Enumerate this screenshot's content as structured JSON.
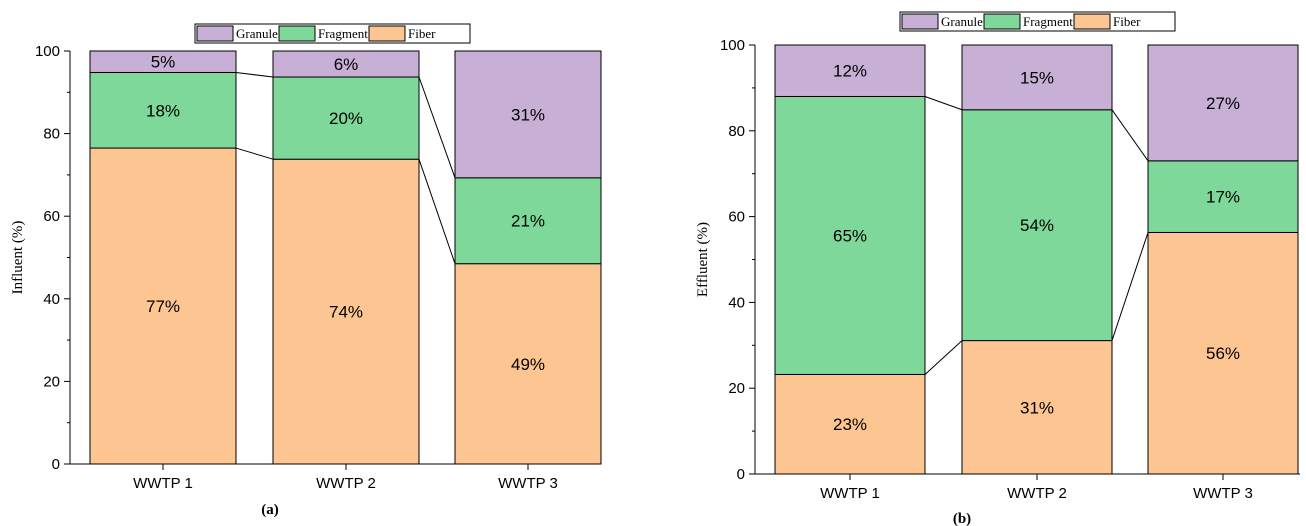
{
  "chart_data": [
    {
      "type": "bar",
      "stacked": true,
      "normalized": true,
      "panel_label": "(a)",
      "categories": [
        "WWTP 1",
        "WWTP 2",
        "WWTP 3"
      ],
      "ylabel": "Influent (%)",
      "xlabel": "",
      "ylim": [
        0,
        100
      ],
      "yticks": [
        0,
        20,
        40,
        60,
        80,
        100
      ],
      "legend": {
        "placement": "top",
        "entries": [
          "Granule",
          "Fragment",
          "Fiber"
        ]
      },
      "series": [
        {
          "name": "Fiber",
          "color": "#FDC591",
          "values": [
            76.5,
            73.8,
            48.5
          ],
          "labels": [
            "77%",
            "74%",
            "49%"
          ]
        },
        {
          "name": "Fragment",
          "color": "#7ED89A",
          "values": [
            18.3,
            19.9,
            20.8
          ],
          "labels": [
            "18%",
            "20%",
            "21%"
          ]
        },
        {
          "name": "Granule",
          "color": "#C7AFD6",
          "values": [
            5.2,
            6.3,
            30.7
          ],
          "labels": [
            "5%",
            "6%",
            "31%"
          ]
        }
      ],
      "connector_lines": true,
      "grid": false
    },
    {
      "type": "bar",
      "stacked": true,
      "normalized": true,
      "panel_label": "(b)",
      "categories": [
        "WWTP 1",
        "WWTP 2",
        "WWTP 3"
      ],
      "ylabel": "Effluent (%)",
      "xlabel": "",
      "ylim": [
        0,
        100
      ],
      "yticks": [
        0,
        20,
        40,
        60,
        80,
        100
      ],
      "legend": {
        "placement": "top",
        "entries": [
          "Granule",
          "Fragment",
          "Fiber"
        ]
      },
      "series": [
        {
          "name": "Fiber",
          "color": "#FDC591",
          "values": [
            23.2,
            31.1,
            56.3
          ],
          "labels": [
            "23%",
            "31%",
            "56%"
          ]
        },
        {
          "name": "Fragment",
          "color": "#7ED89A",
          "values": [
            64.8,
            53.8,
            16.7
          ],
          "labels": [
            "65%",
            "54%",
            "17%"
          ]
        },
        {
          "name": "Granule",
          "color": "#C7AFD6",
          "values": [
            12.0,
            15.1,
            27.0
          ],
          "labels": [
            "12%",
            "15%",
            "27%"
          ]
        }
      ],
      "connector_lines": true,
      "grid": false
    }
  ]
}
